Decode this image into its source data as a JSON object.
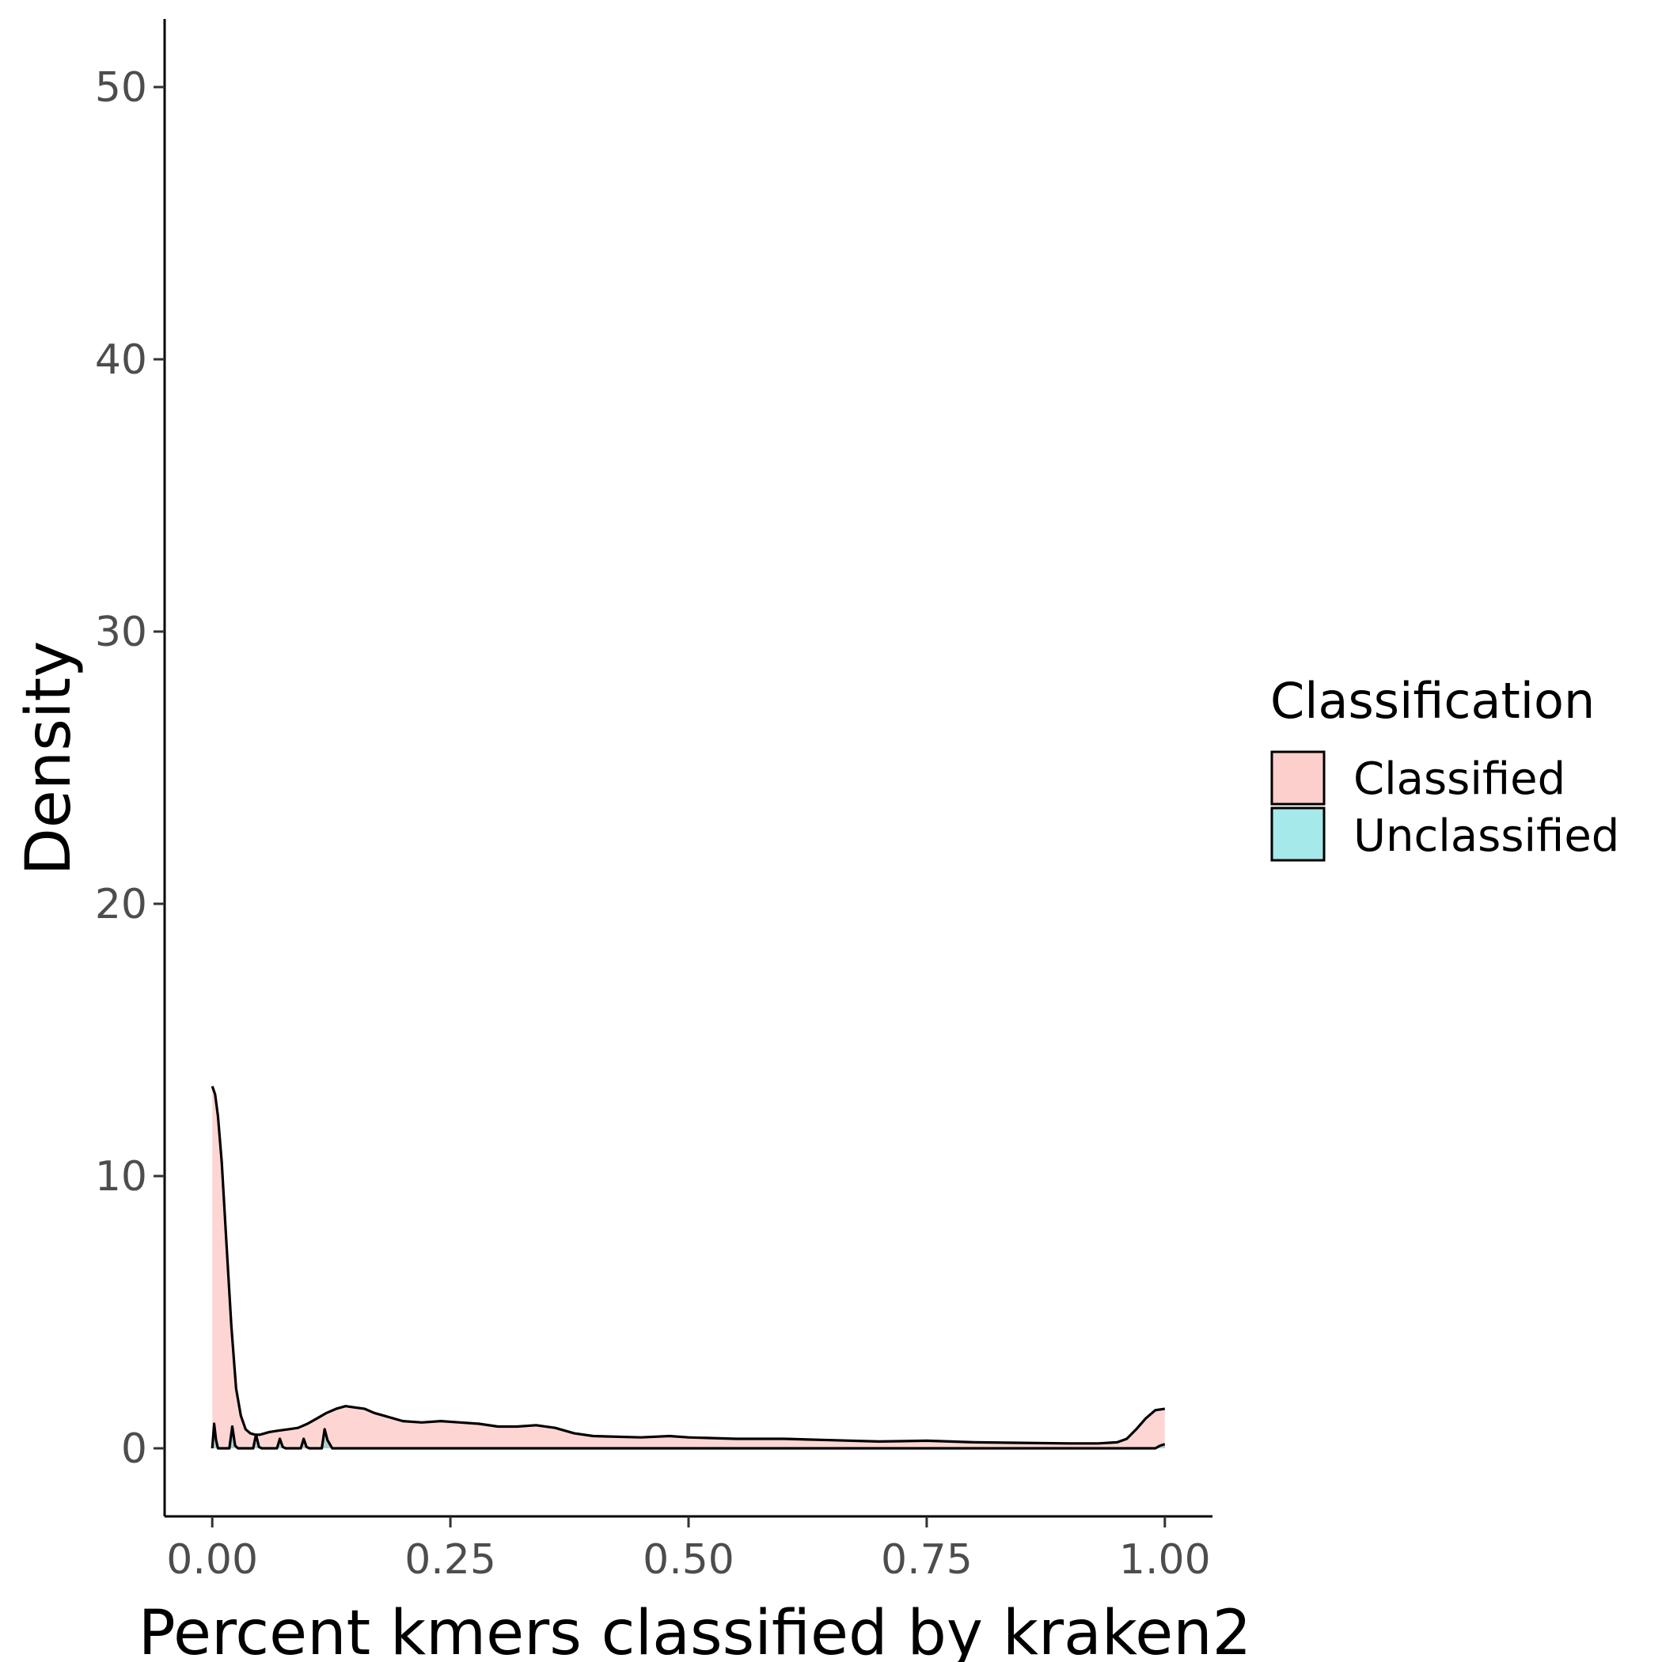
{
  "chart_data": {
    "type": "area",
    "xlabel": "Percent kmers classified by kraken2",
    "ylabel": "Density",
    "xlim": [
      -0.05,
      1.05
    ],
    "ylim": [
      -2.5,
      52.5
    ],
    "x_ticks": [
      0,
      0.25,
      0.5,
      0.75,
      1
    ],
    "x_tick_labels": [
      "0.00",
      "0.25",
      "0.50",
      "0.75",
      "1.00"
    ],
    "y_ticks": [
      0,
      10,
      20,
      30,
      40,
      50
    ],
    "y_tick_labels": [
      "0",
      "10",
      "20",
      "30",
      "40",
      "50"
    ],
    "grid": false,
    "legend": {
      "title": "Classification",
      "position": "right",
      "entries": [
        {
          "label": "Classified",
          "color": "#f8766d"
        },
        {
          "label": "Unclassified",
          "color": "#00bfc4"
        }
      ]
    },
    "series": [
      {
        "label": "Classified",
        "color": "#f8766d",
        "x": [
          0,
          0.003,
          0.006,
          0.01,
          0.015,
          0.02,
          0.025,
          0.03,
          0.035,
          0.04,
          0.045,
          0.05,
          0.06,
          0.07,
          0.08,
          0.09,
          0.1,
          0.11,
          0.12,
          0.13,
          0.14,
          0.15,
          0.16,
          0.17,
          0.18,
          0.2,
          0.22,
          0.24,
          0.26,
          0.28,
          0.3,
          0.32,
          0.34,
          0.36,
          0.38,
          0.4,
          0.45,
          0.48,
          0.5,
          0.55,
          0.6,
          0.65,
          0.7,
          0.75,
          0.8,
          0.85,
          0.9,
          0.93,
          0.95,
          0.96,
          0.97,
          0.98,
          0.99,
          1.0
        ],
        "y": [
          13.3,
          13.0,
          12.2,
          10.5,
          7.5,
          4.5,
          2.2,
          1.2,
          0.7,
          0.55,
          0.5,
          0.5,
          0.6,
          0.65,
          0.7,
          0.75,
          0.9,
          1.1,
          1.3,
          1.45,
          1.55,
          1.5,
          1.45,
          1.3,
          1.2,
          1.0,
          0.95,
          1.0,
          0.95,
          0.9,
          0.8,
          0.8,
          0.85,
          0.75,
          0.55,
          0.45,
          0.4,
          0.45,
          0.4,
          0.35,
          0.35,
          0.3,
          0.25,
          0.28,
          0.22,
          0.2,
          0.18,
          0.18,
          0.22,
          0.35,
          0.7,
          1.1,
          1.4,
          1.45
        ]
      },
      {
        "label": "Unclassified",
        "color": "#00bfc4",
        "x": [
          0,
          0.002,
          0.004,
          0.006,
          0.018,
          0.021,
          0.024,
          0.027,
          0.043,
          0.046,
          0.049,
          0.052,
          0.068,
          0.071,
          0.074,
          0.077,
          0.093,
          0.096,
          0.099,
          0.102,
          0.115,
          0.118,
          0.121,
          0.126,
          0.97,
          0.99,
          0.995,
          1.0
        ],
        "y": [
          0,
          0.9,
          0.3,
          0,
          0,
          0.8,
          0.1,
          0,
          0,
          0.5,
          0.05,
          0,
          0,
          0.35,
          0.05,
          0,
          0,
          0.35,
          0.05,
          0,
          0,
          0.7,
          0.3,
          0,
          0,
          0,
          0.1,
          0.15
        ]
      }
    ]
  }
}
